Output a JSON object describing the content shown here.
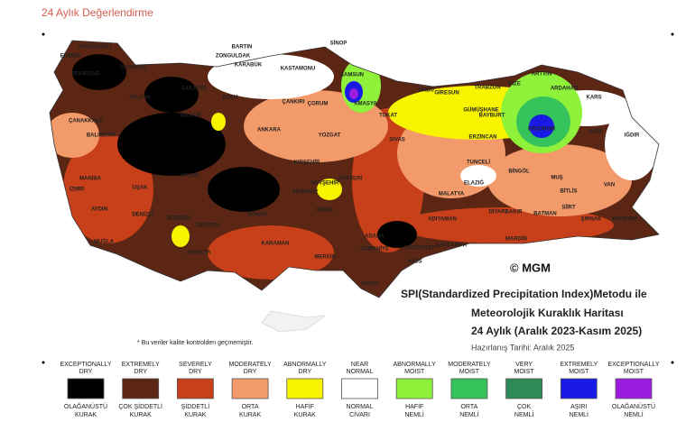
{
  "header": {
    "title": "24 Aylık Değerlendirme"
  },
  "map": {
    "cities": [
      "KIRKLARELİ",
      "EDİRNE",
      "TEKİRDAĞ",
      "İSTANBUL",
      "SAKARYA",
      "BARTIN",
      "ZONGULDAK",
      "KARABÜK",
      "KASTAMONU",
      "SİNOP",
      "SAMSUN",
      "ORDU",
      "GİRESUN",
      "TRABZON",
      "RİZE",
      "ARTVİN",
      "ARDAHAN",
      "KARS",
      "IĞDIR",
      "AĞRI",
      "ERZURUM",
      "BAYBURT",
      "GÜMÜŞHANE",
      "ERZİNCAN",
      "TOKAT",
      "AMASYA",
      "ÇORUM",
      "ÇANKIRI",
      "BOLU",
      "ANKARA",
      "BİLECİK",
      "YALOVA",
      "BALIKESİR",
      "ÇANAKKALE",
      "MANİSA",
      "İZMİR",
      "AYDIN",
      "MUĞLA",
      "DENİZLİ",
      "UŞAK",
      "AFYON",
      "BURDUR",
      "ISPARTA",
      "ANTALYA",
      "KONYA",
      "KARAMAN",
      "MERSİN",
      "ADANA",
      "OSMANİYE",
      "HATAY",
      "GAZİANTEP",
      "KİLİS",
      "ŞANLIURFA",
      "ADIYAMAN",
      "MALATYA",
      "ELAZIĞ",
      "TUNCELİ",
      "BİNGÖL",
      "MUŞ",
      "BİTLİS",
      "VAN",
      "HAKKARİ",
      "ŞIRNAK",
      "SİİRT",
      "BATMAN",
      "MARDİN",
      "DİYARBAKIR",
      "KAYSERİ",
      "NEVŞEHİR",
      "NİĞDE",
      "AKSARAY",
      "KIRŞEHİR",
      "YOZGAT",
      "SİVAS"
    ],
    "copyright": "© MGM",
    "heading": [
      "SPI(Standardized Precipitation Index)Metodu ile",
      "Meteorolojik Kuraklık Haritası",
      "24 Aylık (Aralık 2023-Kasım 2025)"
    ],
    "date": "Hazırlanış Tarihi: Aralık 2025",
    "note": "* Bu veriler kalite kontrolden geçmemiştir."
  },
  "legend": [
    {
      "top": [
        "EXCEPTIONALLY",
        "DRY"
      ],
      "bottom": [
        "OLAĞANÜSTÜ",
        "KURAK"
      ],
      "color": "#000000"
    },
    {
      "top": [
        "EXTREMELY",
        "DRY"
      ],
      "bottom": [
        "ÇOK ŞİDDETLİ",
        "KURAK"
      ],
      "color": "#5b2613"
    },
    {
      "top": [
        "SEVERELY",
        "DRY"
      ],
      "bottom": [
        "ŞİDDETLİ",
        "KURAK"
      ],
      "color": "#c7401a"
    },
    {
      "top": [
        "MODERATELY",
        "DRY"
      ],
      "bottom": [
        "ORTA",
        "KURAK"
      ],
      "color": "#f39a6b"
    },
    {
      "top": [
        "ABNORMALLY",
        "DRY"
      ],
      "bottom": [
        "HAFİF",
        "KURAK"
      ],
      "color": "#f8f400"
    },
    {
      "top": [
        "NEAR",
        "NORMAL"
      ],
      "bottom": [
        "NORMAL",
        "CİVARI"
      ],
      "color": "#ffffff"
    },
    {
      "top": [
        "ABNORMALLY",
        "MOIST"
      ],
      "bottom": [
        "HAFİF",
        "NEMLİ"
      ],
      "color": "#8ef23a"
    },
    {
      "top": [
        "MODERATELY",
        "MOIST"
      ],
      "bottom": [
        "ORTA",
        "NEMLİ"
      ],
      "color": "#37c35c"
    },
    {
      "top": [
        "VERY",
        "MOIST"
      ],
      "bottom": [
        "ÇOK",
        "NEMLİ"
      ],
      "color": "#2e8b57"
    },
    {
      "top": [
        "EXTREMELY",
        "MOIST"
      ],
      "bottom": [
        "AŞIRI",
        "NEMLİ"
      ],
      "color": "#1a1ae6"
    },
    {
      "top": [
        "EXCEPTIONALLY",
        "MOIST"
      ],
      "bottom": [
        "OLAĞANÜSTÜ",
        "NEMLİ"
      ],
      "color": "#9b1ee0"
    }
  ]
}
